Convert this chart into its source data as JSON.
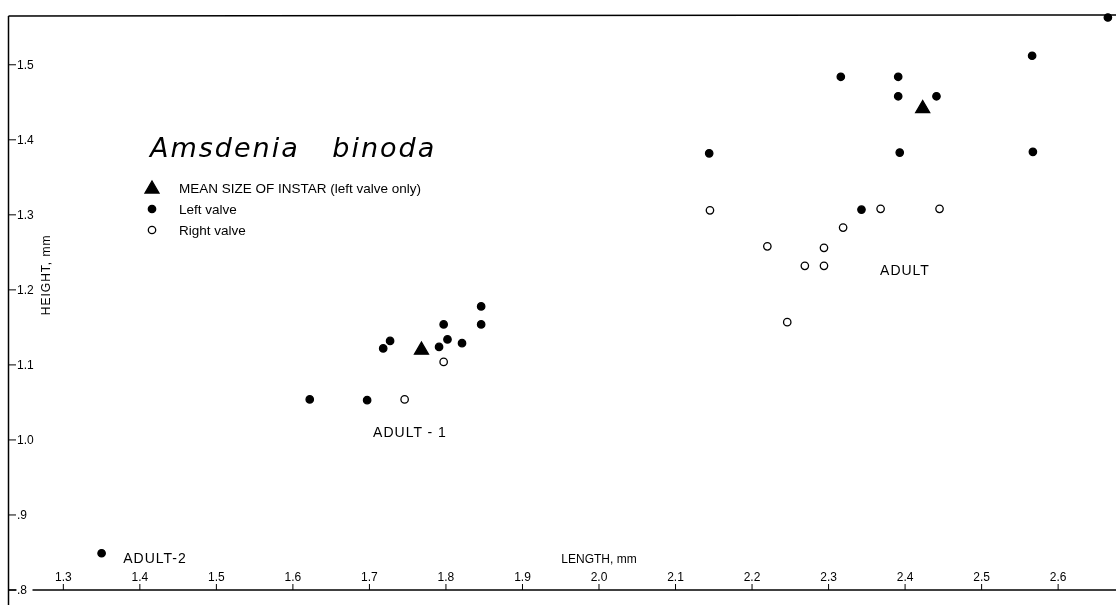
{
  "chart_data": {
    "type": "scatter",
    "title": "Amsdenia binoda",
    "xlabel": "LENGTH, mm",
    "ylabel": "HEIGHT, mm",
    "xlim": [
      1.229,
      2.673
    ],
    "ylim": [
      0.8,
      1.565
    ],
    "xticks": [
      1.3,
      1.4,
      1.5,
      1.6,
      1.7,
      1.8,
      1.9,
      {
        "value": 2.0,
        "label": "2.0"
      },
      2.1,
      2.2,
      2.3,
      2.4,
      2.5,
      2.6
    ],
    "yticks": [
      {
        "value": 0.8,
        "label": ".8"
      },
      {
        "value": 0.9,
        "label": ".9"
      },
      {
        "value": 1.0,
        "label": "1.0"
      },
      1.1,
      1.2,
      1.3,
      1.4,
      1.5
    ],
    "legend": "top left",
    "grid": false,
    "series": [
      {
        "name": "MEAN SIZE OF INSTAR (left valve only)",
        "color": "#000000",
        "marker": "triangle",
        "x": [
          1.768,
          2.423
        ],
        "values": [
          1.121,
          1.443
        ]
      },
      {
        "name": "Left valve",
        "color": "#000000",
        "marker": "circle",
        "x": [
          1.35,
          1.622,
          1.697,
          1.718,
          1.727,
          1.791,
          1.797,
          1.802,
          1.821,
          1.846,
          1.846,
          2.144,
          2.316,
          2.343,
          2.391,
          2.391,
          2.393,
          2.441,
          2.566,
          2.567,
          2.665
        ],
        "values": [
          0.849,
          1.054,
          1.053,
          1.122,
          1.132,
          1.124,
          1.154,
          1.134,
          1.129,
          1.178,
          1.154,
          1.382,
          1.484,
          1.307,
          1.484,
          1.458,
          1.383,
          1.458,
          1.512,
          1.384,
          1.563
        ]
      },
      {
        "name": "Right valve",
        "color": "#ffffff",
        "marker": "circle",
        "x": [
          1.746,
          1.797,
          2.145,
          2.22,
          2.246,
          2.269,
          2.294,
          2.294,
          2.319,
          2.368,
          2.445
        ],
        "values": [
          1.054,
          1.104,
          1.306,
          1.258,
          1.157,
          1.232,
          1.256,
          1.232,
          1.283,
          1.308,
          1.308
        ]
      }
    ],
    "annotations": [
      "ADULT",
      "ADULT - 1",
      "ADULT-2"
    ]
  }
}
